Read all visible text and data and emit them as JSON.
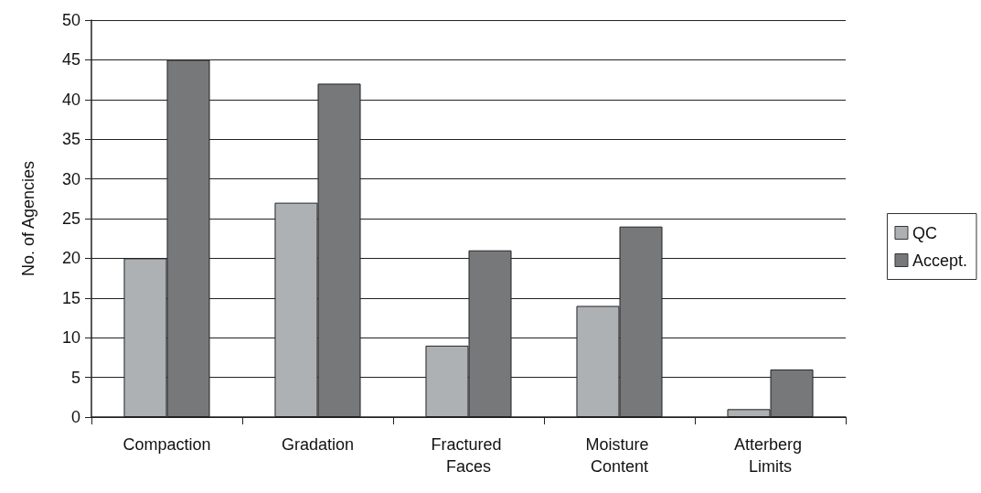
{
  "chart_data": {
    "type": "bar",
    "ylabel": "No. of Agencies",
    "categories": [
      "Compaction",
      "Gradation",
      "Fractured Faces",
      "Moisture Content",
      "Atterberg Limits"
    ],
    "series": [
      {
        "name": "QC",
        "color": "#aeb1b3",
        "values": [
          20,
          27,
          9,
          14,
          1
        ]
      },
      {
        "name": "Accept.",
        "color": "#77787a",
        "values": [
          45,
          42,
          21,
          24,
          6
        ]
      }
    ],
    "ylim": [
      0,
      50
    ],
    "yticks": [
      0,
      5,
      10,
      15,
      20,
      25,
      30,
      35,
      40,
      45,
      50
    ],
    "grid": "y",
    "legend": "right"
  }
}
